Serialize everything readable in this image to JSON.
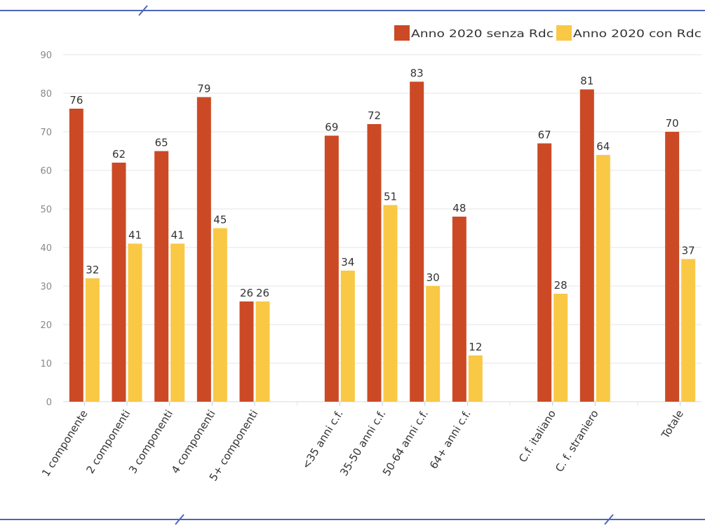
{
  "colors": {
    "series_1": "#CB4A25",
    "series_2": "#F9C845",
    "frame_line": "#4F65B7",
    "axis_text": "#888888",
    "label_text": "#333333",
    "grid": "#E6E6E6"
  },
  "chart_data": {
    "type": "bar",
    "categories": [
      "1 componente",
      "2 componenti",
      "3 componenti",
      "4 componenti",
      "5+ componenti",
      "",
      "<35 anni c.f.",
      "35-50 anni c.f.",
      "50-64 anni c.f.",
      "64+ anni c.f.",
      "",
      "C.f. italiano",
      "C. f. straniero",
      "",
      "Totale"
    ],
    "series": [
      {
        "name": "Anno 2020 senza Rdc",
        "values": [
          76,
          62,
          65,
          79,
          26,
          null,
          69,
          72,
          83,
          48,
          null,
          67,
          81,
          null,
          70
        ]
      },
      {
        "name": "Anno 2020 con Rdc",
        "values": [
          32,
          41,
          41,
          45,
          26,
          null,
          34,
          51,
          30,
          12,
          null,
          28,
          64,
          null,
          37
        ]
      }
    ],
    "ylim": [
      0,
      90
    ],
    "yticks": [
      0,
      10,
      20,
      30,
      40,
      50,
      60,
      70,
      80,
      90
    ],
    "grid": true,
    "legend": "top-right",
    "data_labels": true
  }
}
